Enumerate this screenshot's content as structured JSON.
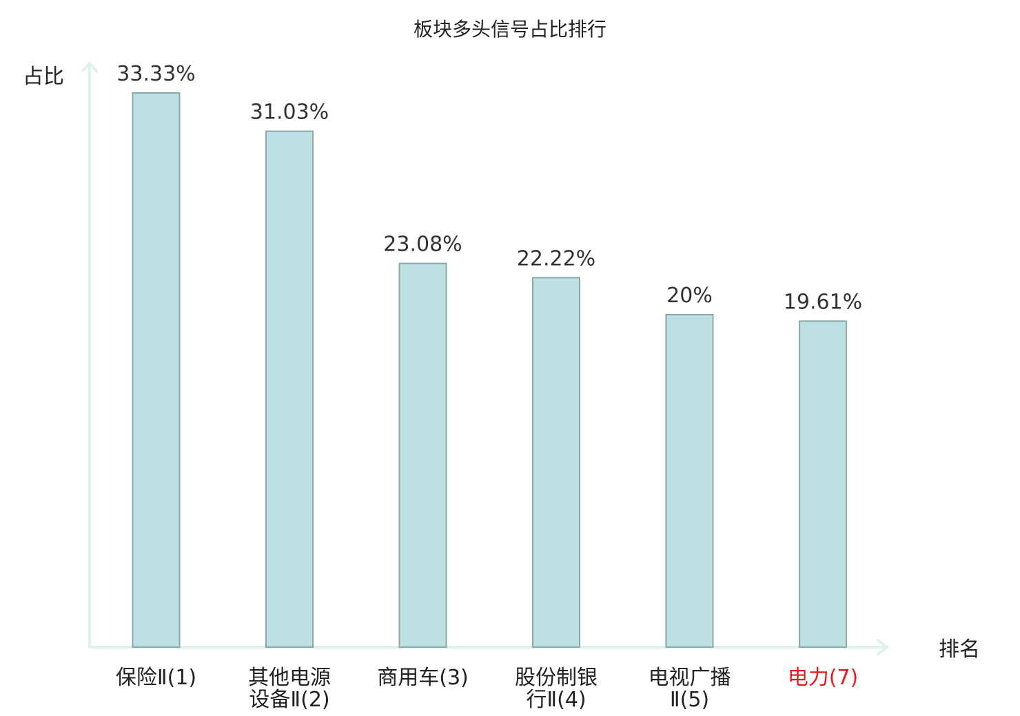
{
  "chart_data": {
    "type": "bar",
    "title": "板块多头信号占比排行",
    "ylabel": "占比",
    "xlabel": "排名",
    "ylim": [
      0,
      0.3478
    ],
    "grid": false,
    "legend": "none",
    "categories": [
      [
        "保险Ⅱ(1)"
      ],
      [
        "其他电源",
        "设备Ⅱ(2)"
      ],
      [
        "商用车(3)"
      ],
      [
        "股份制银",
        "行Ⅱ(4)"
      ],
      [
        "电视广播",
        "Ⅱ(5)"
      ],
      [
        "电力(7)"
      ]
    ],
    "values": [
      0.3333,
      0.3103,
      0.2308,
      0.2222,
      0.2,
      0.1961
    ],
    "value_labels": [
      "33.33%",
      "31.03%",
      "23.08%",
      "22.22%",
      "20%",
      "19.61%"
    ],
    "category_colors": [
      "#222222",
      "#222222",
      "#222222",
      "#222222",
      "#222222",
      "#e8191c"
    ],
    "bar_color": "#bde0e2",
    "bar_edge_color": "#8aa8ab",
    "axis_color": "#dff1ee"
  }
}
